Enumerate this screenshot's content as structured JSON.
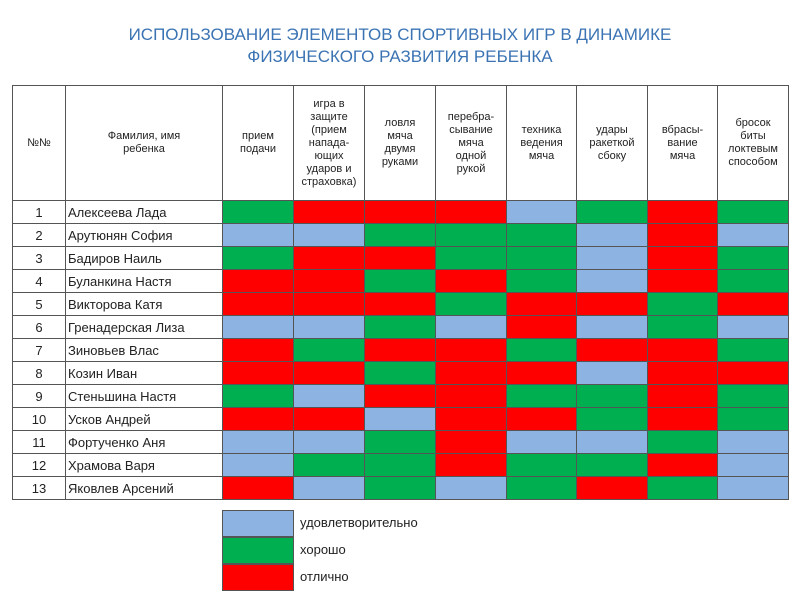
{
  "header": {
    "title": [
      "ИСПОЛЬЗОВАНИЕ ЭЛЕМЕНТОВ СПОРТИВНЫХ ИГР В ДИНАМИКЕ",
      "ФИЗИЧЕСКОГО РАЗВИТИЯ РЕБЕНКА"
    ]
  },
  "table": {
    "columns": [
      "№№",
      "Фамилия, имя\nребенка",
      "прием\nподачи",
      "игра в\nзащите\n(прием\nнапада-\nющих\nударов и\nстраховка)",
      "ловля\nмяча\nдвумя\nруками",
      "перебра-\nсывание\nмяча\nодной\nрукой",
      "техника\nведения\nмяча",
      "удары\nракеткой\nсбоку",
      "вбрасы-\nвание\nмяча",
      "бросок\nбиты\nлоктевым\nспособом"
    ],
    "rows": [
      {
        "number": 1,
        "name": "Алексеева Лада",
        "cells": [
          "#00b050",
          "#ff0000",
          "#ff0000",
          "#ff0000",
          "#8db3e2",
          "#00b050",
          "#ff0000",
          "#00b050"
        ]
      },
      {
        "number": 2,
        "name": "Арутюнян София",
        "cells": [
          "#8db3e2",
          "#8db3e2",
          "#00b050",
          "#00b050",
          "#00b050",
          "#8db3e2",
          "#ff0000",
          "#8db3e2"
        ]
      },
      {
        "number": 3,
        "name": "Бадиров Наиль",
        "cells": [
          "#00b050",
          "#ff0000",
          "#ff0000",
          "#00b050",
          "#00b050",
          "#8db3e2",
          "#ff0000",
          "#00b050"
        ]
      },
      {
        "number": 4,
        "name": "Буланкина Настя",
        "cells": [
          "#ff0000",
          "#ff0000",
          "#00b050",
          "#ff0000",
          "#00b050",
          "#8db3e2",
          "#ff0000",
          "#00b050"
        ]
      },
      {
        "number": 5,
        "name": "Викторова Катя",
        "cells": [
          "#ff0000",
          "#ff0000",
          "#ff0000",
          "#00b050",
          "#ff0000",
          "#ff0000",
          "#00b050",
          "#ff0000"
        ]
      },
      {
        "number": 6,
        "name": "Гренадерская Лиза",
        "cells": [
          "#8db3e2",
          "#8db3e2",
          "#00b050",
          "#8db3e2",
          "#ff0000",
          "#8db3e2",
          "#00b050",
          "#8db3e2"
        ]
      },
      {
        "number": 7,
        "name": "Зиновьев Влас",
        "cells": [
          "#ff0000",
          "#00b050",
          "#ff0000",
          "#ff0000",
          "#00b050",
          "#ff0000",
          "#ff0000",
          "#00b050"
        ]
      },
      {
        "number": 8,
        "name": "Козин Иван",
        "cells": [
          "#ff0000",
          "#ff0000",
          "#00b050",
          "#ff0000",
          "#ff0000",
          "#8db3e2",
          "#ff0000",
          "#ff0000"
        ]
      },
      {
        "number": 9,
        "name": "Стеньшина Настя",
        "cells": [
          "#00b050",
          "#8db3e2",
          "#ff0000",
          "#ff0000",
          "#00b050",
          "#00b050",
          "#ff0000",
          "#00b050"
        ]
      },
      {
        "number": 10,
        "name": "Усков Андрей",
        "cells": [
          "#ff0000",
          "#ff0000",
          "#8db3e2",
          "#ff0000",
          "#ff0000",
          "#00b050",
          "#ff0000",
          "#00b050"
        ]
      },
      {
        "number": 11,
        "name": "Фортученко Аня",
        "cells": [
          "#8db3e2",
          "#8db3e2",
          "#00b050",
          "#ff0000",
          "#8db3e2",
          "#8db3e2",
          "#00b050",
          "#8db3e2"
        ]
      },
      {
        "number": 12,
        "name": "Храмова Варя",
        "cells": [
          "#8db3e2",
          "#00b050",
          "#00b050",
          "#ff0000",
          "#00b050",
          "#00b050",
          "#ff0000",
          "#8db3e2"
        ]
      },
      {
        "number": 13,
        "name": "Яковлев Арсений",
        "cells": [
          "#ff0000",
          "#8db3e2",
          "#00b050",
          "#8db3e2",
          "#00b050",
          "#ff0000",
          "#00b050",
          "#8db3e2"
        ]
      }
    ]
  },
  "legend": [
    {
      "label": "удовлетворительно",
      "color": "#8db3e2"
    },
    {
      "label": "хорошо",
      "color": "#00b050"
    },
    {
      "label": "отлично",
      "color": "#ff0000"
    }
  ]
}
